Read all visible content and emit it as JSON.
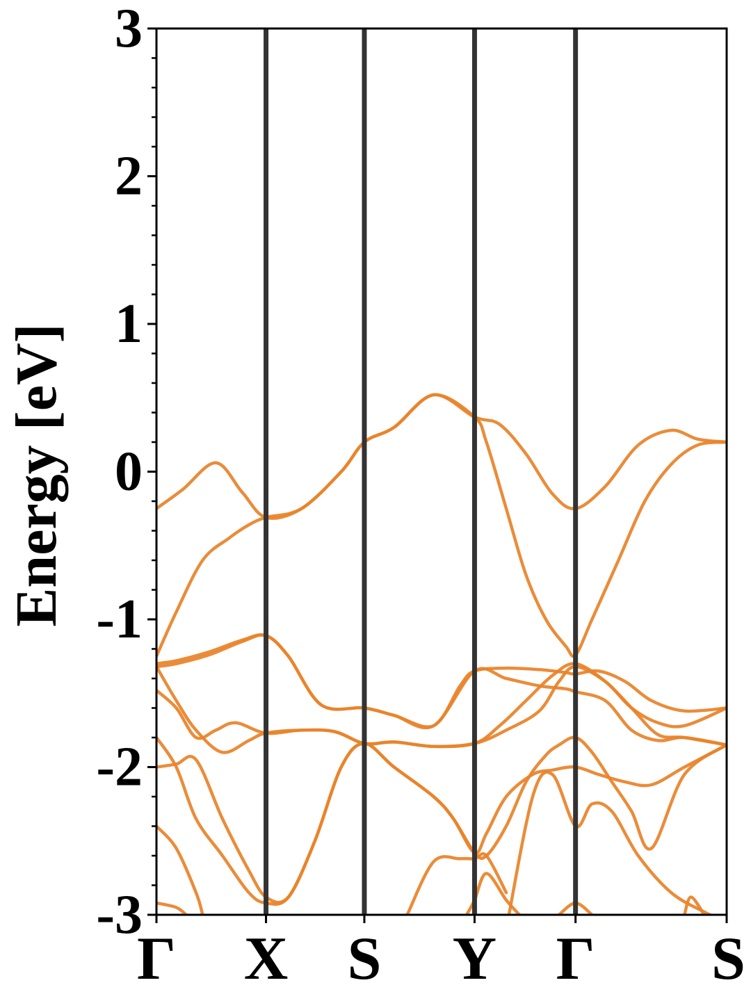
{
  "chart_data": {
    "type": "line",
    "title": "",
    "ylabel": "Energy [eV]",
    "xlabel": "",
    "ylim": [
      -3,
      3
    ],
    "xlim": [
      0,
      8.64
    ],
    "yticks": [
      -3,
      -2,
      -1,
      0,
      1,
      2,
      3
    ],
    "ytick_labels": [
      "-3",
      "-2",
      "-1",
      "0",
      "1",
      "2",
      "3"
    ],
    "kpoints": [
      {
        "label": "Γ",
        "x": 0
      },
      {
        "label": "X",
        "x": 1.66
      },
      {
        "label": "S",
        "x": 3.15
      },
      {
        "label": "Y",
        "x": 4.82
      },
      {
        "label": "Γ",
        "x": 6.35
      },
      {
        "label": "S",
        "x": 8.64
      }
    ],
    "grid": false,
    "legend": "none",
    "colors": {
      "band": "#e8832a",
      "kpath_line": "#333333",
      "axis": "#000000"
    },
    "bands": [
      {
        "x": [
          0,
          0.4,
          0.9,
          1.3,
          1.66,
          2.2,
          2.8,
          3.15,
          3.6,
          4.2,
          4.82,
          5.2,
          5.6,
          6.0,
          6.35,
          6.8,
          7.3,
          7.8,
          8.2,
          8.64
        ],
        "y": [
          -0.25,
          -0.12,
          0.06,
          -0.14,
          -0.31,
          -0.25,
          0.0,
          0.2,
          0.3,
          0.52,
          0.37,
          0.32,
          0.12,
          -0.15,
          -0.25,
          -0.1,
          0.18,
          0.28,
          0.22,
          0.2
        ]
      },
      {
        "x": [
          0,
          0.3,
          0.7,
          1.1,
          1.4,
          1.66,
          2.2,
          2.8,
          3.15,
          3.6,
          4.2,
          4.82,
          5.0,
          5.3,
          5.6,
          5.9,
          6.2,
          6.35,
          6.6,
          7.0,
          7.4,
          7.8,
          8.2,
          8.64
        ],
        "y": [
          -1.25,
          -0.95,
          -0.6,
          -0.45,
          -0.36,
          -0.31,
          -0.25,
          0.0,
          0.2,
          0.3,
          0.52,
          0.37,
          0.2,
          -0.25,
          -0.7,
          -1.0,
          -1.18,
          -1.24,
          -1.0,
          -0.6,
          -0.2,
          0.05,
          0.18,
          0.2
        ]
      },
      {
        "x": [
          0,
          0.3,
          0.8,
          1.3,
          1.66,
          2.0,
          2.5,
          3.15,
          3.6,
          4.2,
          4.6,
          4.82,
          5.3,
          5.8,
          6.2,
          6.35,
          6.7,
          7.1,
          7.5,
          8.0,
          8.64
        ],
        "y": [
          -1.3,
          -1.28,
          -1.22,
          -1.14,
          -1.11,
          -1.25,
          -1.58,
          -1.6,
          -1.65,
          -1.72,
          -1.45,
          -1.35,
          -1.33,
          -1.34,
          -1.36,
          -1.37,
          -1.35,
          -1.42,
          -1.55,
          -1.62,
          -1.6
        ]
      },
      {
        "x": [
          0,
          0.3,
          0.8,
          1.3,
          1.66,
          2.0,
          2.5,
          3.15,
          3.6,
          4.2,
          4.82,
          5.3,
          5.8,
          6.2,
          6.35,
          6.8,
          7.2,
          7.6,
          8.0,
          8.64
        ],
        "y": [
          -1.32,
          -1.3,
          -1.24,
          -1.15,
          -1.11,
          -1.25,
          -1.58,
          -1.6,
          -1.65,
          -1.72,
          -1.35,
          -1.4,
          -1.45,
          -1.47,
          -1.49,
          -1.55,
          -1.75,
          -1.82,
          -1.8,
          -1.85
        ]
      },
      {
        "x": [
          0,
          0.3,
          0.6,
          0.9,
          1.2,
          1.66,
          2.2,
          2.7,
          3.15,
          3.6,
          4.2,
          4.82,
          5.2,
          5.6,
          6.0,
          6.35,
          6.8,
          7.2,
          7.6,
          8.0,
          8.64
        ],
        "y": [
          -1.48,
          -1.6,
          -1.8,
          -1.75,
          -1.7,
          -1.77,
          -1.75,
          -1.76,
          -1.84,
          -1.83,
          -1.86,
          -1.84,
          -1.72,
          -1.55,
          -1.38,
          -1.3,
          -1.42,
          -1.6,
          -1.78,
          -1.8,
          -1.85
        ]
      },
      {
        "x": [
          0,
          0.3,
          0.6,
          1.0,
          1.4,
          1.66,
          2.2,
          2.7,
          3.15,
          3.6,
          4.2,
          4.82,
          5.3,
          5.8,
          6.1,
          6.35,
          6.8,
          7.2,
          7.6,
          8.0,
          8.64
        ],
        "y": [
          -1.32,
          -1.55,
          -1.75,
          -1.9,
          -1.82,
          -1.77,
          -1.75,
          -1.76,
          -1.84,
          -1.83,
          -1.86,
          -1.84,
          -1.75,
          -1.62,
          -1.42,
          -1.32,
          -1.42,
          -1.6,
          -1.7,
          -1.72,
          -1.6
        ]
      },
      {
        "x": [
          0,
          0.3,
          0.6,
          1.0,
          1.4,
          1.66,
          2.0,
          2.4,
          2.8,
          3.15,
          3.6,
          4.2,
          4.5,
          4.82,
          5.0,
          5.3,
          5.7,
          6.0,
          6.35,
          6.7,
          7.1,
          7.5,
          8.0,
          8.64
        ],
        "y": [
          -2.0,
          -1.98,
          -1.95,
          -2.35,
          -2.7,
          -2.88,
          -2.88,
          -2.5,
          -2.0,
          -1.84,
          -2.0,
          -2.2,
          -2.35,
          -2.58,
          -2.45,
          -2.2,
          -2.05,
          -2.02,
          -2.0,
          -2.05,
          -2.1,
          -2.12,
          -2.0,
          -1.85
        ]
      },
      {
        "x": [
          0,
          0.3,
          0.6,
          1.0,
          1.4,
          1.66,
          2.0,
          2.4,
          2.8,
          3.15,
          3.6,
          4.2,
          4.5,
          4.82,
          5.0,
          5.3,
          5.6,
          5.9,
          6.1,
          6.35,
          6.6,
          6.9,
          7.2,
          7.5,
          8.0,
          8.64
        ],
        "y": [
          -1.8,
          -2.0,
          -2.35,
          -2.6,
          -2.85,
          -2.92,
          -2.88,
          -2.5,
          -2.0,
          -1.84,
          -2.0,
          -2.2,
          -2.35,
          -2.58,
          -2.6,
          -2.4,
          -2.1,
          -1.92,
          -1.85,
          -1.8,
          -1.9,
          -2.1,
          -2.3,
          -2.55,
          -2.05,
          -1.85
        ]
      },
      {
        "x": [
          0,
          0.3,
          0.6,
          0.7
        ],
        "y": [
          -2.4,
          -2.55,
          -2.85,
          -3.0
        ]
      },
      {
        "x": [
          0,
          0.3,
          0.45
        ],
        "y": [
          -2.92,
          -2.95,
          -3.0
        ]
      },
      {
        "x": [
          3.8,
          4.2,
          4.6,
          4.82,
          5.0,
          5.3
        ],
        "y": [
          -3.0,
          -2.64,
          -2.62,
          -2.62,
          -2.6,
          -2.85
        ]
      },
      {
        "x": [
          4.7,
          4.82,
          5.0,
          5.3,
          5.5
        ],
        "y": [
          -3.0,
          -2.9,
          -2.72,
          -2.9,
          -3.0
        ]
      },
      {
        "x": [
          6.1,
          6.35,
          6.6
        ],
        "y": [
          -3.0,
          -2.92,
          -3.0
        ]
      },
      {
        "x": [
          5.3,
          5.7,
          6.0,
          6.35,
          6.6,
          6.9,
          7.3,
          7.8,
          8.3,
          8.64
        ],
        "y": [
          -3.1,
          -2.2,
          -2.05,
          -2.4,
          -2.25,
          -2.3,
          -2.6,
          -2.85,
          -2.98,
          -3.05
        ]
      },
      {
        "x": [
          8.0,
          8.1,
          8.3
        ],
        "y": [
          -3.0,
          -2.88,
          -3.0
        ]
      }
    ]
  }
}
